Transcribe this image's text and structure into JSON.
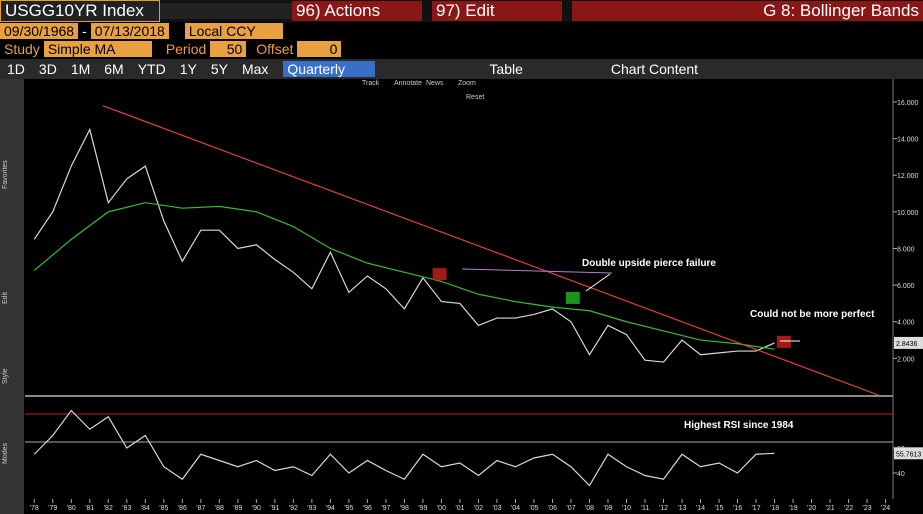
{
  "toolbar": {
    "ticker": "USGG10YR Index",
    "actions": "96) Actions",
    "edit": "97) Edit",
    "page_title": "G 8: Bollinger Bands",
    "start_date": "09/30/1968",
    "dash": "-",
    "end_date": "07/13/2018",
    "currency": "Local CCY",
    "study_label": "Study",
    "study": "Simple MA",
    "period_label": "Period",
    "period": "50",
    "offset_label": "Offset",
    "offset": "0",
    "ranges": [
      "1D",
      "3D",
      "1M",
      "6M",
      "YTD",
      "1Y",
      "5Y",
      "Max"
    ],
    "frequency": "Quarterly",
    "table": "Table",
    "chart_content": "Chart Content",
    "chart_tools": [
      "Track",
      "Annotate",
      "News",
      "Zoom",
      "Reset"
    ],
    "sidebar": [
      "Favorites",
      "Edit",
      "Style",
      "Modes"
    ]
  },
  "chart_data": [
    {
      "type": "line",
      "x": [
        1978,
        1979,
        1980,
        1981,
        1982,
        1983,
        1984,
        1985,
        1986,
        1987,
        1988,
        1989,
        1990,
        1991,
        1992,
        1993,
        1994,
        1995,
        1996,
        1997,
        1998,
        1999,
        2000,
        2001,
        2002,
        2003,
        2004,
        2005,
        2006,
        2007,
        2008,
        2009,
        2010,
        2011,
        2012,
        2013,
        2014,
        2015,
        2016,
        2017,
        2018
      ],
      "series": [
        {
          "color": "#d8d8d8",
          "values": [
            8.5,
            10,
            12.5,
            14.5,
            10.5,
            11.8,
            12.5,
            9.5,
            7.3,
            9,
            9,
            8,
            8.2,
            7.4,
            6.7,
            5.8,
            7.8,
            5.6,
            6.5,
            5.8,
            4.7,
            6.4,
            5.1,
            5,
            3.8,
            4.2,
            4.2,
            4.4,
            4.7,
            4,
            2.2,
            3.8,
            3.3,
            1.9,
            1.8,
            3,
            2.2,
            2.3,
            2.4,
            2.4,
            2.8436
          ]
        },
        {
          "color": "#2fbf2f",
          "x": [
            1978,
            1980,
            1982,
            1984,
            1986,
            1988,
            1990,
            1992,
            1994,
            1996,
            1998,
            2000,
            2002,
            2004,
            2006,
            2008,
            2010,
            2012,
            2014,
            2016,
            2018
          ],
          "values": [
            6.8,
            8.5,
            10,
            10.5,
            10.2,
            10.3,
            10,
            9.2,
            8,
            7.2,
            6.7,
            6.2,
            5.5,
            5.1,
            4.8,
            4.6,
            4,
            3.5,
            3,
            2.8,
            2.5
          ]
        }
      ],
      "trendline": {
        "color": "#e0443a",
        "x": [
          1981.7,
          2023.6
        ],
        "values": [
          15.8,
          0
        ]
      },
      "markers": [
        {
          "color": "#c0201c",
          "x": 1999.9,
          "value": 6.6
        },
        {
          "color": "#1fae1f",
          "x": 2007.1,
          "value": 5.3
        },
        {
          "color": "#c0201c",
          "x": 2018.5,
          "value": 2.9
        }
      ],
      "last_value": 2.8436,
      "annotations": [
        "Double upside pierce failure",
        "Could not be more perfect"
      ],
      "xlim": [
        1977.5,
        2024.4
      ],
      "ylim": [
        0,
        17.2
      ],
      "yticks": [
        {
          "value": 2,
          "label": "2.000"
        },
        {
          "value": 4,
          "label": "4.000"
        },
        {
          "value": 6,
          "label": "6.000"
        },
        {
          "value": 8,
          "label": "8.000"
        },
        {
          "value": 10,
          "label": "10.000"
        },
        {
          "value": 12,
          "label": "12.000"
        },
        {
          "value": 14,
          "label": "14.000"
        },
        {
          "value": 16,
          "label": "16.000"
        }
      ],
      "xticks": [
        {
          "value": 1978,
          "label": "'78"
        },
        {
          "value": 1979,
          "label": "'79"
        },
        {
          "value": 1980,
          "label": "'80"
        },
        {
          "value": 1981,
          "label": "'81"
        },
        {
          "value": 1982,
          "label": "'82"
        },
        {
          "value": 1983,
          "label": "'83"
        },
        {
          "value": 1984,
          "label": "'84"
        },
        {
          "value": 1985,
          "label": "'85"
        },
        {
          "value": 1986,
          "label": "'86"
        },
        {
          "value": 1987,
          "label": "'87"
        },
        {
          "value": 1988,
          "label": "'88"
        },
        {
          "value": 1989,
          "label": "'89"
        },
        {
          "value": 1990,
          "label": "'90"
        },
        {
          "value": 1991,
          "label": "'91"
        },
        {
          "value": 1992,
          "label": "'92"
        },
        {
          "value": 1993,
          "label": "'93"
        },
        {
          "value": 1994,
          "label": "'94"
        },
        {
          "value": 1995,
          "label": "'95"
        },
        {
          "value": 1996,
          "label": "'96"
        },
        {
          "value": 1997,
          "label": "'97"
        },
        {
          "value": 1998,
          "label": "'98"
        },
        {
          "value": 1999,
          "label": "'99"
        },
        {
          "value": 2000,
          "label": "'00"
        },
        {
          "value": 2001,
          "label": "'01"
        },
        {
          "value": 2002,
          "label": "'02"
        },
        {
          "value": 2003,
          "label": "'03"
        },
        {
          "value": 2004,
          "label": "'04"
        },
        {
          "value": 2005,
          "label": "'05"
        },
        {
          "value": 2006,
          "label": "'06"
        },
        {
          "value": 2007,
          "label": "'07"
        },
        {
          "value": 2008,
          "label": "'08"
        },
        {
          "value": 2009,
          "label": "'09"
        },
        {
          "value": 2010,
          "label": "'10"
        },
        {
          "value": 2011,
          "label": "'11"
        },
        {
          "value": 2012,
          "label": "'12"
        },
        {
          "value": 2013,
          "label": "'13"
        },
        {
          "value": 2014,
          "label": "'14"
        },
        {
          "value": 2015,
          "label": "'15"
        },
        {
          "value": 2016,
          "label": "'16"
        },
        {
          "value": 2017,
          "label": "'17"
        },
        {
          "value": 2018,
          "label": "'18"
        },
        {
          "value": 2019,
          "label": "'19"
        },
        {
          "value": 2020,
          "label": "'20"
        },
        {
          "value": 2021,
          "label": "'21"
        },
        {
          "value": 2022,
          "label": "'22"
        },
        {
          "value": 2023,
          "label": "'23"
        },
        {
          "value": 2024,
          "label": "'24"
        }
      ]
    },
    {
      "type": "line",
      "x": [
        1978,
        1979,
        1980,
        1981,
        1982,
        1983,
        1984,
        1985,
        1986,
        1987,
        1988,
        1989,
        1990,
        1991,
        1992,
        1993,
        1994,
        1995,
        1996,
        1997,
        1998,
        1999,
        2000,
        2001,
        2002,
        2003,
        2004,
        2005,
        2006,
        2007,
        2008,
        2009,
        2010,
        2011,
        2012,
        2013,
        2014,
        2015,
        2016,
        2017,
        2018
      ],
      "series": [
        {
          "color": "#d8d8d8",
          "values": [
            55,
            70,
            90,
            75,
            85,
            60,
            70,
            45,
            35,
            55,
            50,
            45,
            50,
            42,
            45,
            38,
            55,
            40,
            50,
            42,
            35,
            55,
            45,
            48,
            38,
            50,
            45,
            52,
            55,
            45,
            30,
            55,
            45,
            38,
            35,
            55,
            45,
            48,
            40,
            55,
            55.7613
          ]
        }
      ],
      "last_value": 55.7613,
      "annotations": [
        "Highest RSI since 1984"
      ],
      "ylim": [
        20,
        100
      ],
      "yticks": [
        40,
        60
      ]
    }
  ]
}
